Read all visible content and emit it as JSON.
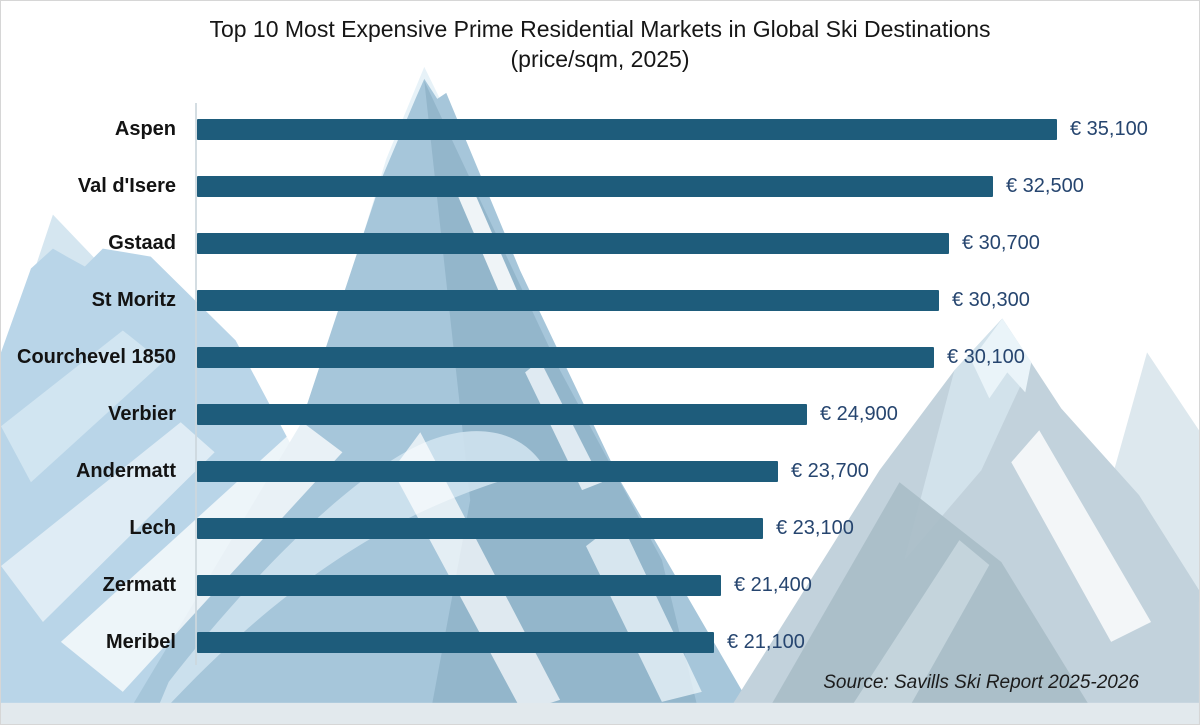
{
  "page": {
    "title_line1": "Top 10 Most Expensive Prime Residential Markets in Global Ski Destinations",
    "title_line2": "(price/sqm, 2025)",
    "source": "Source: Savills Ski Report 2025-2026"
  },
  "chart_data": {
    "type": "bar",
    "orientation": "horizontal",
    "title": "Top 10 Most Expensive Prime Residential Markets in Global Ski Destinations",
    "subtitle": "(price/sqm, 2025)",
    "unit": "EUR per sqm",
    "categories": [
      "Aspen",
      "Val d'Isere",
      "Gstaad",
      "St Moritz",
      "Courchevel 1850",
      "Verbier",
      "Andermatt",
      "Lech",
      "Zermatt",
      "Meribel"
    ],
    "values": [
      35100,
      32500,
      30700,
      30300,
      30100,
      24900,
      23700,
      23100,
      21400,
      21100
    ],
    "value_labels": [
      "€ 35,100",
      "€ 32,500",
      "€ 30,700",
      "€ 30,300",
      "€ 30,100",
      "€ 24,900",
      "€ 23,700",
      "€ 23,100",
      "€ 21,400",
      "€ 21,100"
    ],
    "xlim": [
      0,
      35100
    ],
    "grid": false,
    "legend": false,
    "source": "Source: Savills Ski Report 2025-2026",
    "colors": {
      "bar": "#1e5c7b",
      "value_label": "#26456f",
      "category_label": "#131313",
      "title": "#161616",
      "axis_line": "#ccd7dd"
    }
  }
}
